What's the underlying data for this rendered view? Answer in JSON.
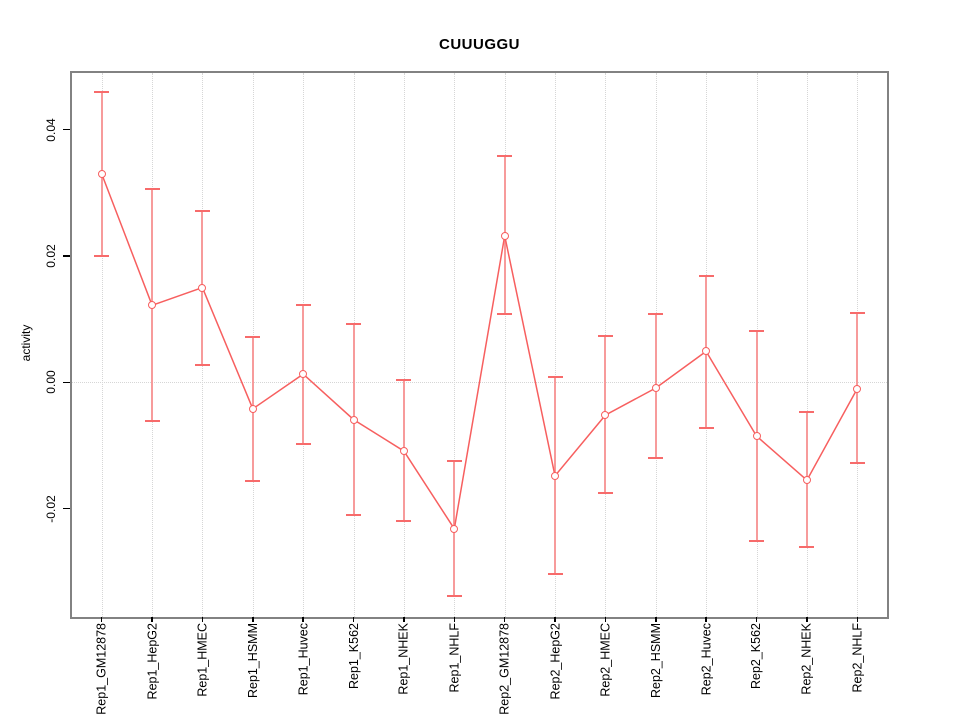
{
  "chart_data": {
    "type": "line",
    "title": "CUUUGGU",
    "xlabel": "",
    "ylabel": "activity",
    "legend": "none",
    "grid": "dotted vertical gridline at each category; dotted horizontal line at y=0",
    "ylim": [
      -0.037,
      0.049
    ],
    "y_ticks": [
      0.04,
      0.02,
      0.0,
      -0.02
    ],
    "y_tick_labels": [
      "0.04",
      "0.02",
      "0.00",
      "-0.02"
    ],
    "categories": [
      "Rep1_GM12878",
      "Rep1_HepG2",
      "Rep1_HMEC",
      "Rep1_HSMM",
      "Rep1_Huvec",
      "Rep1_K562",
      "Rep1_NHEK",
      "Rep1_NHLF",
      "Rep2_GM12878",
      "Rep2_HepG2",
      "Rep2_HMEC",
      "Rep2_HSMM",
      "Rep2_Huvec",
      "Rep2_K562",
      "Rep2_NHEK",
      "Rep2_NHLF"
    ],
    "series": [
      {
        "name": "activity",
        "marker": "open-circle",
        "values": [
          0.033,
          0.0122,
          0.015,
          -0.0042,
          0.0013,
          -0.0059,
          -0.0109,
          -0.0232,
          0.0232,
          -0.0148,
          -0.0052,
          -0.0009,
          0.0049,
          -0.0085,
          -0.0155,
          -0.001
        ],
        "error_low": [
          0.02,
          -0.0061,
          0.0028,
          -0.0156,
          -0.0097,
          -0.021,
          -0.022,
          -0.0338,
          0.0108,
          -0.0304,
          -0.0175,
          -0.012,
          -0.0073,
          -0.0252,
          -0.0261,
          -0.0128
        ],
        "error_high": [
          0.046,
          0.0306,
          0.0272,
          0.0072,
          0.0122,
          0.0093,
          0.0004,
          -0.0125,
          0.0359,
          0.0008,
          0.0073,
          0.0108,
          0.0169,
          0.0081,
          -0.0047,
          0.0109
        ]
      }
    ],
    "colors": {
      "series_line": "#f75f5f",
      "error_bar_stem": "#f79b9b",
      "error_bar_cap": "#f76b6b",
      "grid_line": "#d6d6d6",
      "plot_box_border": "#828282",
      "background": "#ffffff",
      "text": "#000000"
    }
  }
}
